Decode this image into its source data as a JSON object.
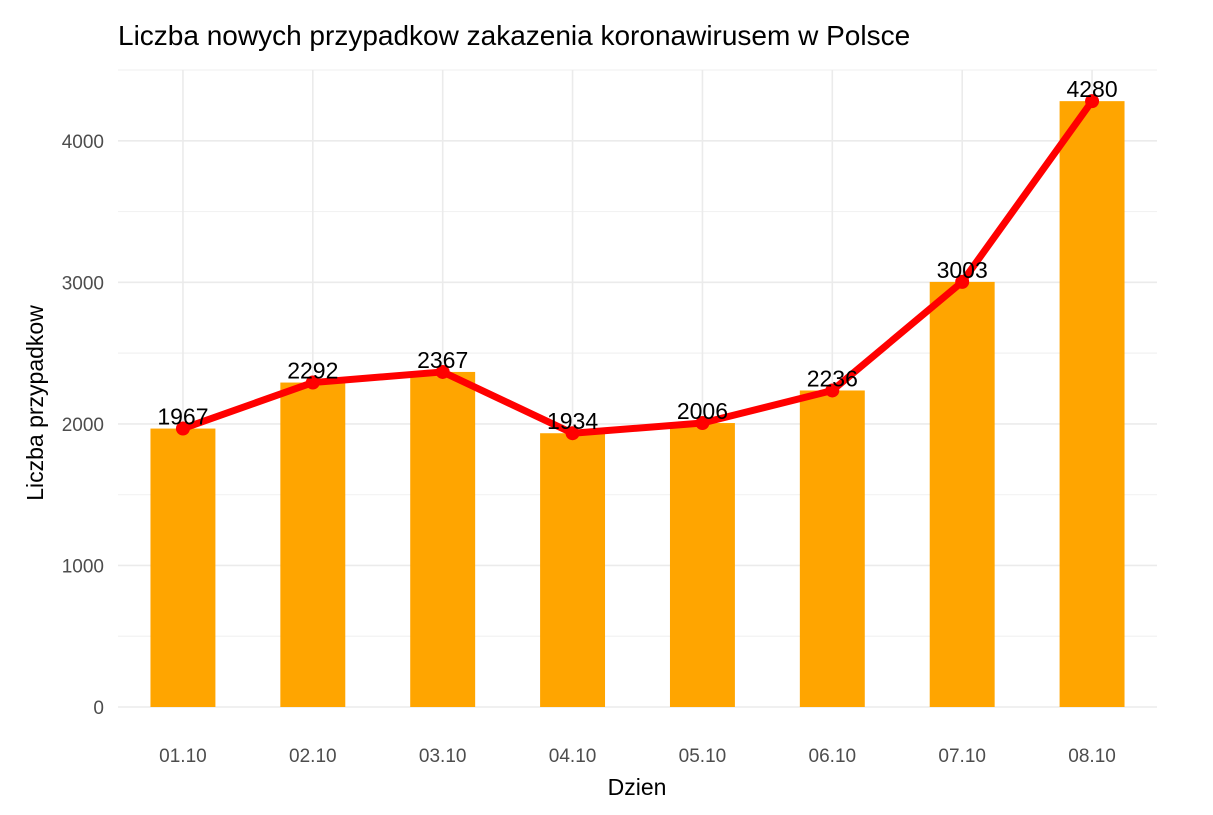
{
  "chart_data": {
    "type": "bar",
    "title": "Liczba nowych przypadkow zakazenia koronawirusem w Polsce",
    "xlabel": "Dzien",
    "ylabel": "Liczba przypadkow",
    "categories": [
      "01.10",
      "02.10",
      "03.10",
      "04.10",
      "05.10",
      "06.10",
      "07.10",
      "08.10"
    ],
    "values": [
      1967,
      2292,
      2367,
      1934,
      2006,
      2236,
      3003,
      4280
    ],
    "overlay_line": {
      "type": "line",
      "values": [
        1967,
        2292,
        2367,
        1934,
        2006,
        2236,
        3003,
        4280
      ],
      "color": "#ff0000"
    },
    "data_labels": [
      "1967",
      "2292",
      "2367",
      "1934",
      "2006",
      "2236",
      "3003",
      "4280"
    ],
    "ylim": [
      0,
      4500
    ],
    "yticks": [
      0,
      1000,
      2000,
      3000,
      4000
    ],
    "ytick_labels": [
      "0",
      "1000",
      "2000",
      "3000",
      "4000"
    ],
    "grid": true,
    "legend": "none",
    "bar_color": "#ffa500",
    "line_color": "#ff0000"
  }
}
